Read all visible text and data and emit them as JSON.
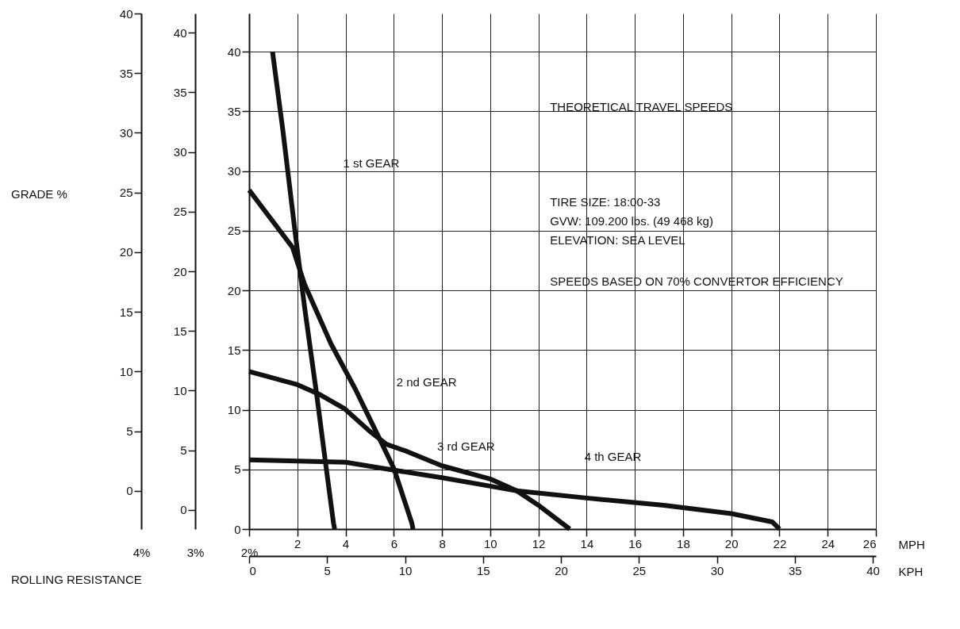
{
  "chart_data": {
    "type": "line",
    "title": "THEORETICAL TRAVEL SPEEDS",
    "xlabel": "MPH",
    "x2label": "KPH",
    "ylabel": "2%",
    "y2label": "4%",
    "y3label": "3%",
    "xlim": [
      0,
      26
    ],
    "xticks": [
      {
        "value": 0,
        "label": null
      },
      2,
      4,
      6,
      8,
      10,
      12,
      14,
      16,
      18,
      20,
      22,
      24,
      26
    ],
    "x2lim": [
      0,
      40.2
    ],
    "x2ticks": [
      0,
      5,
      10,
      15,
      20,
      25,
      30,
      35,
      40
    ],
    "ylim": [
      0,
      43.2
    ],
    "yticks": [
      0,
      5,
      10,
      15,
      20,
      25,
      30,
      35,
      40
    ],
    "y2lim": [
      -3.2,
      40
    ],
    "y2ticks": [
      0,
      5,
      10,
      15,
      20,
      25,
      30,
      35,
      40
    ],
    "y3lim": [
      -1.6,
      41.6
    ],
    "y3ticks": [
      0,
      5,
      10,
      15,
      20,
      25,
      30,
      35,
      40
    ],
    "grid": true,
    "marker": "none",
    "line_style": "solid",
    "series": [
      {
        "color": "#111111",
        "x": [
          0.97,
          1.4,
          1.9,
          2.3,
          2.8,
          3.2,
          3.5,
          3.55
        ],
        "values": [
          40,
          33.4,
          25,
          18.6,
          11.3,
          5.1,
          0.5,
          0
        ]
      },
      {
        "color": "#111111",
        "x": [
          0,
          1.8,
          2.3,
          3.4,
          4.4,
          5.4,
          6.0,
          6.75,
          6.8
        ],
        "values": [
          28.4,
          23.6,
          20.5,
          15.5,
          11.75,
          7.6,
          5.1,
          0.5,
          0
        ]
      },
      {
        "color": "#111111",
        "x": [
          0,
          2,
          2.9,
          3.95,
          5.0,
          5.7,
          6.55,
          8.0,
          10.0,
          11.1,
          12.0,
          13.3
        ],
        "values": [
          13.2,
          12.1,
          11.3,
          10.1,
          8.2,
          7.1,
          6.5,
          5.3,
          4.2,
          3.2,
          2.0,
          0
        ]
      },
      {
        "color": "#111111",
        "x": [
          0,
          2,
          4,
          5.5,
          8,
          10,
          11.1,
          14,
          17.2,
          20,
          21.7,
          22
        ],
        "values": [
          5.8,
          5.7,
          5.6,
          5.1,
          4.3,
          3.6,
          3.2,
          2.6,
          2.0,
          1.3,
          0.6,
          0
        ]
      }
    ],
    "annotations": [
      "1 st GEAR",
      "2 nd GEAR",
      "3 rd GEAR",
      "4 th GEAR",
      "TIRE SIZE: 18:00-33",
      "GVW: 109.200 lbs. (49 468 kg)",
      "ELEVATION: SEA LEVEL",
      "SPEEDS BASED ON 70% CONVERTOR EFFICIENCY",
      "GRADE %",
      "ROLLING RESISTANCE"
    ]
  }
}
